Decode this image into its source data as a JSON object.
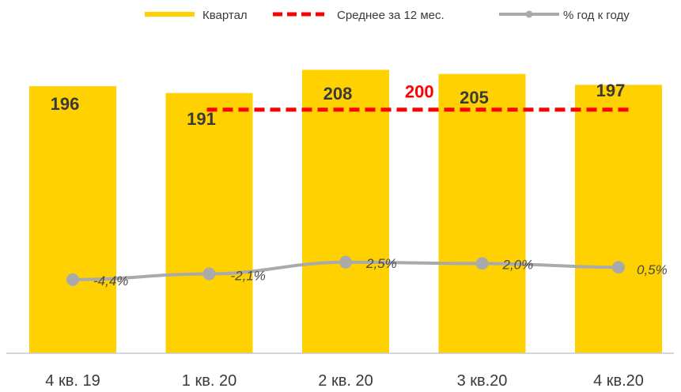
{
  "chart_data": {
    "type": "bar",
    "categories": [
      "4 кв. 19",
      "1 кв. 20",
      "2 кв. 20",
      "3 кв.20",
      "4 кв.20"
    ],
    "series": [
      {
        "name": "Квартал",
        "type": "bar",
        "values": [
          196,
          191,
          208,
          205,
          197
        ],
        "value_labels": [
          "196",
          "191",
          "208",
          "205",
          "197"
        ],
        "color": "#FFD100"
      },
      {
        "name": "Среднее за 12 мес.",
        "type": "line",
        "style": "dashed",
        "value": 200,
        "value_label": "200",
        "span_categories": [
          "1 кв. 20",
          "4 кв.20"
        ],
        "color": "#FF0000"
      },
      {
        "name": "% год к году",
        "type": "line",
        "values": [
          -4.4,
          -2.1,
          2.5,
          2.0,
          0.5
        ],
        "value_labels": [
          "-4,4%",
          "-2,1%",
          "2,5%",
          "2,0%",
          "0,5%"
        ],
        "color": "#AAAAAA",
        "secondary_axis": true
      }
    ],
    "legend_position": "top-right",
    "grid": false
  }
}
